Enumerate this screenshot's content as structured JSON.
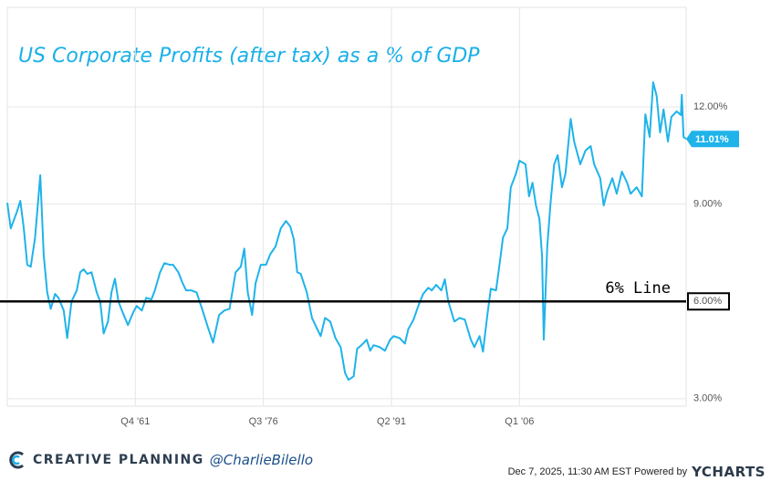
{
  "chart_data": {
    "type": "line",
    "title": "US Corporate Profits (after tax) as a % of GDP",
    "x": [
      1947.0,
      1947.4,
      1948.1,
      1948.5,
      1948.9,
      1949.3,
      1949.7,
      1950.2,
      1950.8,
      1951.2,
      1951.6,
      1952.0,
      1952.5,
      1952.9,
      1953.5,
      1953.9,
      1954.4,
      1955.0,
      1955.4,
      1955.8,
      1956.2,
      1956.7,
      1957.3,
      1957.7,
      1958.1,
      1958.6,
      1959.0,
      1959.4,
      1959.8,
      1960.2,
      1960.9,
      1961.5,
      1961.9,
      1962.5,
      1963.0,
      1963.6,
      1964.0,
      1964.6,
      1965.1,
      1965.7,
      1966.1,
      1966.7,
      1967.2,
      1967.6,
      1968.2,
      1968.8,
      1969.5,
      1970.1,
      1970.7,
      1971.4,
      1972.0,
      1972.6,
      1973.3,
      1973.9,
      1974.3,
      1974.7,
      1975.2,
      1975.6,
      1976.2,
      1976.8,
      1977.3,
      1977.9,
      1978.5,
      1979.1,
      1979.6,
      1980.0,
      1980.4,
      1980.8,
      1981.5,
      1982.1,
      1982.7,
      1983.1,
      1983.6,
      1984.2,
      1984.8,
      1985.4,
      1985.9,
      1986.3,
      1986.9,
      1987.3,
      1987.8,
      1988.4,
      1988.8,
      1989.2,
      1989.9,
      1990.5,
      1991.1,
      1991.5,
      1992.2,
      1992.8,
      1993.2,
      1993.8,
      1994.3,
      1994.9,
      1995.5,
      1995.9,
      1996.4,
      1997.0,
      1997.4,
      1997.8,
      1998.5,
      1999.1,
      1999.7,
      2000.4,
      2000.8,
      2001.4,
      2001.8,
      2002.3,
      2002.7,
      2003.3,
      2003.7,
      2004.1,
      2004.6,
      2005.0,
      2005.6,
      2006.0,
      2006.7,
      2007.1,
      2007.5,
      2007.9,
      2008.3,
      2008.6,
      2008.8,
      2009.2,
      2009.6,
      2010.0,
      2010.4,
      2010.9,
      2011.3,
      2011.9,
      2012.3,
      2013.0,
      2013.6,
      2014.2,
      2014.6,
      2015.3,
      2015.7,
      2016.1,
      2016.7,
      2017.2,
      2017.8,
      2018.4,
      2018.8,
      2019.5,
      2020.1,
      2020.5,
      2021.0,
      2021.4,
      2021.8,
      2022.2,
      2022.6,
      2023.1,
      2023.5,
      2024.1,
      2024.6,
      2024.7,
      2024.9,
      2025.2
    ],
    "series": [
      {
        "name": "US Corporate Profits (after tax) as a % of GDP",
        "color": "#1fb3ea",
        "values": [
          9.04,
          8.25,
          8.76,
          9.1,
          8.25,
          7.13,
          7.07,
          7.97,
          9.89,
          7.41,
          6.28,
          5.77,
          6.23,
          6.11,
          5.72,
          4.87,
          6.0,
          6.34,
          6.9,
          6.99,
          6.85,
          6.9,
          6.28,
          6.0,
          5.01,
          5.38,
          6.28,
          6.7,
          6.0,
          5.72,
          5.27,
          5.66,
          5.86,
          5.72,
          6.11,
          6.06,
          6.34,
          6.9,
          7.18,
          7.13,
          7.13,
          6.9,
          6.56,
          6.34,
          6.34,
          6.28,
          5.72,
          5.21,
          4.73,
          5.58,
          5.72,
          5.77,
          6.9,
          7.07,
          7.63,
          6.28,
          5.58,
          6.56,
          7.13,
          7.13,
          7.46,
          7.69,
          8.25,
          8.48,
          8.31,
          7.92,
          6.9,
          6.85,
          6.28,
          5.49,
          5.15,
          4.93,
          5.49,
          5.38,
          4.87,
          4.59,
          3.8,
          3.58,
          3.69,
          4.54,
          4.65,
          4.82,
          4.48,
          4.65,
          4.59,
          4.48,
          4.82,
          4.93,
          4.87,
          4.7,
          5.15,
          5.44,
          5.83,
          6.23,
          6.42,
          6.34,
          6.51,
          6.34,
          6.68,
          6.0,
          5.38,
          5.49,
          5.44,
          4.82,
          4.59,
          4.93,
          4.45,
          5.58,
          6.39,
          6.34,
          7.13,
          7.97,
          8.25,
          9.52,
          9.94,
          10.34,
          10.23,
          9.24,
          9.66,
          8.96,
          8.54,
          7.41,
          4.82,
          7.69,
          9.1,
          10.23,
          10.51,
          9.52,
          9.94,
          11.63,
          10.93,
          10.23,
          10.65,
          10.79,
          10.23,
          9.8,
          8.96,
          9.38,
          9.8,
          9.32,
          10.0,
          9.66,
          9.32,
          9.52,
          9.24,
          11.77,
          11.07,
          12.76,
          12.34,
          11.21,
          11.92,
          10.93,
          11.69,
          11.86,
          11.75,
          12.37,
          11.07,
          11.01
        ]
      }
    ],
    "last_label": {
      "value": 11.01,
      "label": "11.01%"
    },
    "reference_line": {
      "value": 6,
      "label": "6% Line"
    },
    "xlim": [
      1947.0,
      2025.2
    ],
    "xticks": [
      {
        "value": 1961.75,
        "label": "Q4 '61"
      },
      {
        "value": 1976.5,
        "label": "Q3 '76"
      },
      {
        "value": 1991.25,
        "label": "Q2 '91"
      },
      {
        "value": 2006.0,
        "label": "Q1 '06"
      }
    ],
    "ylim": [
      2.77,
      15.07
    ],
    "yticks": [
      {
        "value": 3,
        "label": "3.00%"
      },
      {
        "value": 6,
        "label": "6.00%"
      },
      {
        "value": 9,
        "label": "9.00%"
      },
      {
        "value": 12,
        "label": "12.00%"
      }
    ],
    "grid": true
  },
  "footer": {
    "brand": "CREATIVE PLANNING",
    "handle": "@CharlieBilello",
    "stamp": "Dec 7, 2025, 11:30 AM EST Powered by",
    "source": "YCHARTS"
  }
}
